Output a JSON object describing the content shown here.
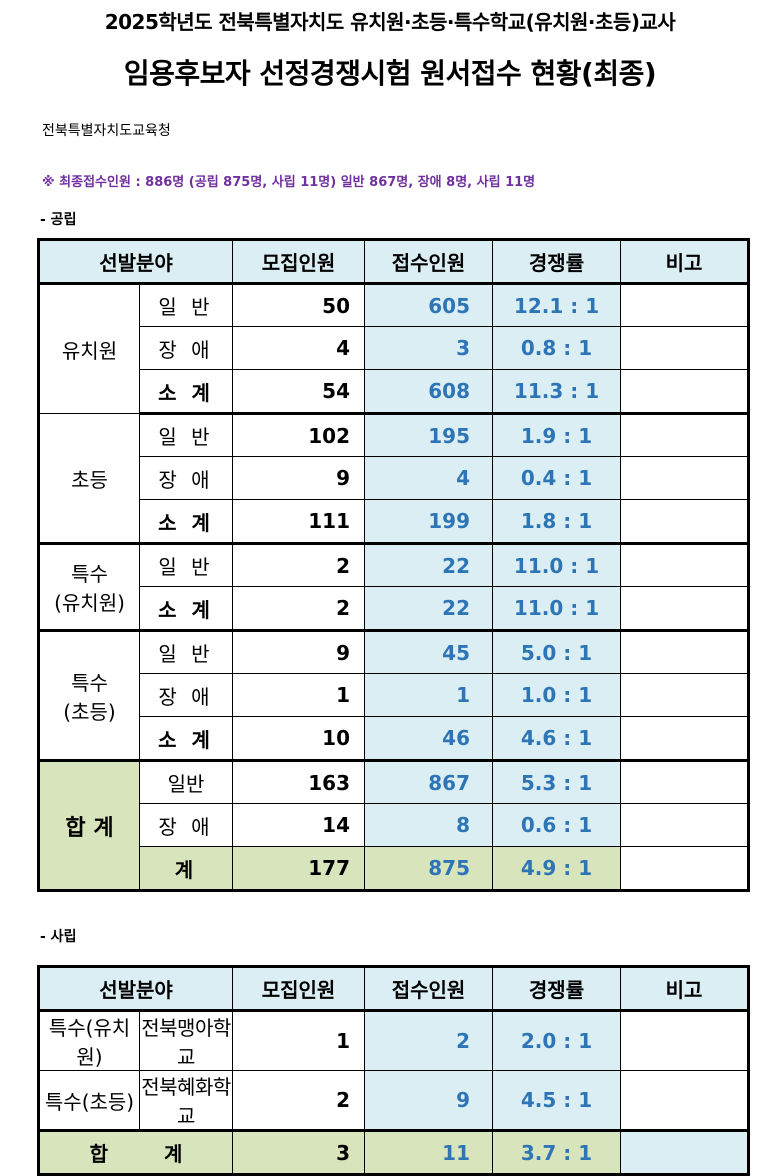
{
  "header": {
    "title_line1": "2025학년도 전북특별자치도 유치원·초등·특수학교(유치원·초등)교사",
    "title_line2": "임용후보자 선정경쟁시험 원서접수 현황(최종)",
    "org": "전북특별자치도교육청",
    "note": "※ 최종접수인원 : 886명 (공립 875명, 사립 11명)  일반 867명, 장애 8명, 사립 11명"
  },
  "public": {
    "section_label": "- 공립",
    "columns": [
      "선발분야",
      "모집인원",
      "접수인원",
      "경쟁률",
      "비고"
    ],
    "groups": [
      {
        "name": "유치원",
        "rows": [
          {
            "sub": "일 반",
            "quota": "50",
            "applied": "605",
            "rate": "12.1 : 1"
          },
          {
            "sub": "장 애",
            "quota": "4",
            "applied": "3",
            "rate": "0.8 : 1"
          },
          {
            "sub": "소 계",
            "quota": "54",
            "applied": "608",
            "rate": "11.3 : 1"
          }
        ]
      },
      {
        "name": "초등",
        "rows": [
          {
            "sub": "일 반",
            "quota": "102",
            "applied": "195",
            "rate": "1.9 : 1"
          },
          {
            "sub": "장 애",
            "quota": "9",
            "applied": "4",
            "rate": "0.4 : 1"
          },
          {
            "sub": "소 계",
            "quota": "111",
            "applied": "199",
            "rate": "1.8 : 1"
          }
        ]
      },
      {
        "name_line1": "특수",
        "name_line2": "(유치원)",
        "rows": [
          {
            "sub": "일 반",
            "quota": "2",
            "applied": "22",
            "rate": "11.0 : 1"
          },
          {
            "sub": "소 계",
            "quota": "2",
            "applied": "22",
            "rate": "11.0 : 1"
          }
        ]
      },
      {
        "name_line1": "특수",
        "name_line2": "(초등)",
        "rows": [
          {
            "sub": "일 반",
            "quota": "9",
            "applied": "45",
            "rate": "5.0 : 1"
          },
          {
            "sub": "장 애",
            "quota": "1",
            "applied": "1",
            "rate": "1.0 : 1"
          },
          {
            "sub": "소 계",
            "quota": "10",
            "applied": "46",
            "rate": "4.6 : 1"
          }
        ]
      },
      {
        "name": "합 계",
        "rows": [
          {
            "sub": "일반",
            "quota": "163",
            "applied": "867",
            "rate": "5.3 : 1"
          },
          {
            "sub": "장 애",
            "quota": "14",
            "applied": "8",
            "rate": "0.6 : 1"
          },
          {
            "sub": "계",
            "quota": "177",
            "applied": "875",
            "rate": "4.9 : 1"
          }
        ]
      }
    ]
  },
  "private": {
    "section_label": "- 사립",
    "columns": [
      "선발분야",
      "모집인원",
      "접수인원",
      "경쟁률",
      "비고"
    ],
    "rows": [
      {
        "field": "특수(유치원)",
        "school": "전북맹아학교",
        "quota": "1",
        "applied": "2",
        "rate": "2.0 : 1"
      },
      {
        "field": "특수(초등)",
        "school": "전북혜화학교",
        "quota": "2",
        "applied": "9",
        "rate": "4.5 : 1"
      }
    ],
    "total": {
      "label_a": "합",
      "label_b": "계",
      "quota": "3",
      "applied": "11",
      "rate": "3.7 : 1"
    }
  },
  "colors": {
    "header_bg": "#dbeef3",
    "total_bg": "#d8e4bc",
    "value_blue": "#2e75b6",
    "note_purple": "#7030a0"
  }
}
